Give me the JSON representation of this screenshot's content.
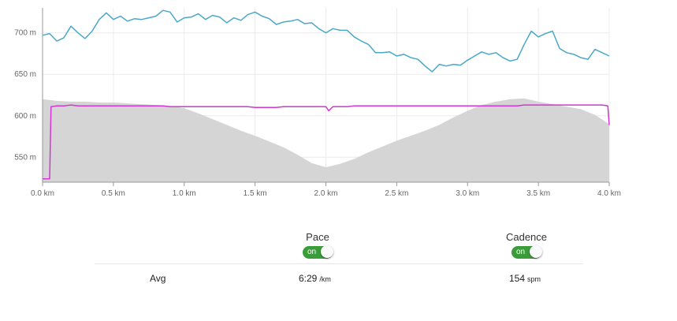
{
  "chart_data": {
    "type": "line",
    "x_unit": "km",
    "xlim": [
      0.0,
      4.0
    ],
    "ylim": [
      520,
      730
    ],
    "x_ticks": [
      "0.0 km",
      "0.5 km",
      "1.0 km",
      "1.5 km",
      "2.0 km",
      "2.5 km",
      "3.0 km",
      "3.5 km",
      "4.0 km"
    ],
    "y_ticks": [
      "550 m",
      "600 m",
      "650 m",
      "700 m"
    ],
    "grid": true,
    "series": [
      {
        "color": "#4aa8c8",
        "style": "line",
        "x": [
          0.0,
          0.05,
          0.1,
          0.15,
          0.2,
          0.25,
          0.3,
          0.35,
          0.4,
          0.45,
          0.5,
          0.55,
          0.6,
          0.65,
          0.7,
          0.75,
          0.8,
          0.85,
          0.9,
          0.95,
          1.0,
          1.05,
          1.1,
          1.15,
          1.2,
          1.25,
          1.3,
          1.35,
          1.4,
          1.45,
          1.5,
          1.55,
          1.6,
          1.65,
          1.7,
          1.75,
          1.8,
          1.85,
          1.9,
          1.95,
          2.0,
          2.05,
          2.1,
          2.15,
          2.2,
          2.25,
          2.3,
          2.35,
          2.4,
          2.45,
          2.5,
          2.55,
          2.6,
          2.65,
          2.7,
          2.75,
          2.8,
          2.85,
          2.9,
          2.95,
          3.0,
          3.05,
          3.1,
          3.15,
          3.2,
          3.25,
          3.3,
          3.35,
          3.4,
          3.45,
          3.5,
          3.55,
          3.6,
          3.65,
          3.7,
          3.75,
          3.8,
          3.85,
          3.9,
          3.95,
          4.0
        ],
        "y": [
          697,
          699,
          690,
          694,
          708,
          700,
          693,
          702,
          716,
          724,
          716,
          720,
          714,
          717,
          716,
          718,
          720,
          727,
          725,
          713,
          718,
          719,
          723,
          716,
          721,
          719,
          712,
          718,
          715,
          722,
          725,
          720,
          717,
          710,
          713,
          714,
          716,
          711,
          712,
          705,
          700,
          705,
          703,
          703,
          695,
          690,
          686,
          676,
          676,
          677,
          672,
          674,
          670,
          668,
          660,
          653,
          662,
          660,
          662,
          661,
          667,
          672,
          677,
          674,
          676,
          670,
          666,
          668,
          686,
          702,
          695,
          699,
          702,
          681,
          676,
          674,
          670,
          668,
          680,
          676,
          672
        ]
      },
      {
        "color": "#d535d5",
        "style": "line",
        "x": [
          0.0,
          0.05,
          0.06,
          0.1,
          0.15,
          0.2,
          0.25,
          0.3,
          0.35,
          0.4,
          0.45,
          0.5,
          0.55,
          0.6,
          0.65,
          0.7,
          0.75,
          0.8,
          0.85,
          0.9,
          0.95,
          1.0,
          1.05,
          1.1,
          1.15,
          1.2,
          1.25,
          1.3,
          1.35,
          1.4,
          1.45,
          1.5,
          1.55,
          1.6,
          1.65,
          1.7,
          1.75,
          1.8,
          1.85,
          1.9,
          1.95,
          2.0,
          2.02,
          2.05,
          2.1,
          2.15,
          2.2,
          2.25,
          2.3,
          2.35,
          2.4,
          2.45,
          2.5,
          2.55,
          2.6,
          2.65,
          2.7,
          2.75,
          2.8,
          2.85,
          2.9,
          2.95,
          3.0,
          3.05,
          3.1,
          3.15,
          3.2,
          3.25,
          3.3,
          3.35,
          3.4,
          3.45,
          3.5,
          3.55,
          3.6,
          3.65,
          3.7,
          3.75,
          3.8,
          3.85,
          3.9,
          3.95,
          3.99,
          4.0
        ],
        "y": [
          524,
          524,
          611,
          612,
          612,
          613,
          612,
          612,
          612,
          612,
          612,
          612,
          612,
          612,
          612,
          612,
          612,
          612,
          612,
          611,
          611,
          611,
          611,
          611,
          611,
          611,
          611,
          611,
          611,
          611,
          611,
          610,
          610,
          610,
          610,
          611,
          611,
          611,
          611,
          611,
          611,
          611,
          606,
          611,
          611,
          611,
          612,
          612,
          612,
          612,
          612,
          612,
          612,
          612,
          612,
          612,
          612,
          612,
          612,
          612,
          612,
          612,
          612,
          612,
          612,
          612,
          612,
          612,
          612,
          612,
          613,
          613,
          613,
          613,
          613,
          613,
          613,
          613,
          613,
          613,
          613,
          613,
          612,
          589
        ]
      },
      {
        "color": "#d5d5d5",
        "style": "area",
        "x": [
          0.0,
          0.1,
          0.2,
          0.3,
          0.4,
          0.5,
          0.6,
          0.7,
          0.8,
          0.9,
          1.0,
          1.1,
          1.2,
          1.3,
          1.4,
          1.5,
          1.6,
          1.7,
          1.8,
          1.9,
          2.0,
          2.1,
          2.2,
          2.3,
          2.4,
          2.5,
          2.6,
          2.7,
          2.8,
          2.9,
          3.0,
          3.1,
          3.2,
          3.3,
          3.4,
          3.5,
          3.6,
          3.7,
          3.8,
          3.9,
          4.0
        ],
        "y": [
          620,
          618,
          617,
          617,
          616,
          616,
          615,
          614,
          613,
          612,
          609,
          603,
          596,
          589,
          582,
          576,
          569,
          562,
          553,
          543,
          538,
          542,
          548,
          556,
          563,
          570,
          576,
          582,
          589,
          598,
          606,
          613,
          617,
          620,
          621,
          617,
          614,
          611,
          608,
          601,
          590
        ]
      }
    ]
  },
  "controls": {
    "pace": {
      "label": "Pace",
      "toggle": "on"
    },
    "cadence": {
      "label": "Cadence",
      "toggle": "on"
    }
  },
  "stats": {
    "label": "Avg",
    "pace_value": "6:29",
    "pace_unit": "/km",
    "cadence_value": "154",
    "cadence_unit": "spm"
  }
}
